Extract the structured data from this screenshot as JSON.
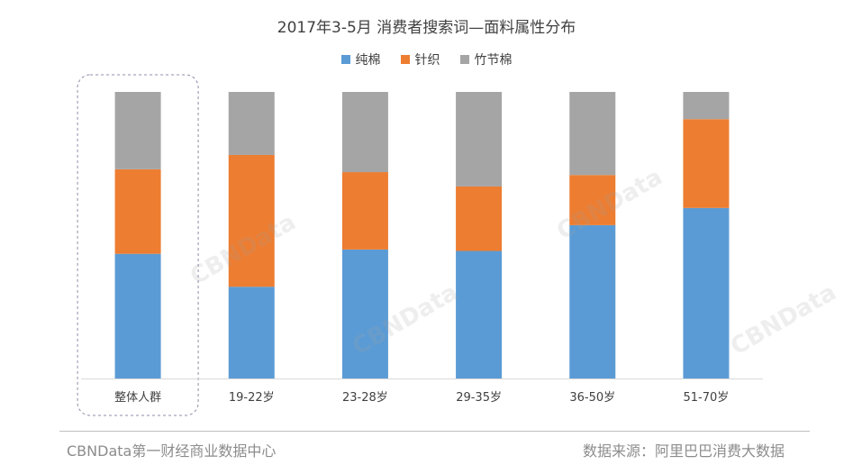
{
  "title": "2017年3-5月 消费者搜索词—面料属性分布",
  "legend": [
    {
      "label": "纯棉",
      "color": "#5b9bd5"
    },
    {
      "label": "针织",
      "color": "#ed7d31"
    },
    {
      "label": "竹节棉",
      "color": "#a5a5a5"
    }
  ],
  "footer": {
    "left": "CBNData第一财经商业数据中心",
    "right": "数据来源：阿里巴巴消费大数据"
  },
  "watermark": "CBNData",
  "chart_data": {
    "type": "bar",
    "stacked": true,
    "percent": true,
    "categories": [
      "整体人群",
      "19-22岁",
      "23-28岁",
      "29-35岁",
      "36-50岁",
      "51-70岁"
    ],
    "series": [
      {
        "name": "纯棉",
        "color": "#5b9bd5",
        "values": [
          43.5,
          32,
          45,
          44.5,
          53.5,
          59.5
        ]
      },
      {
        "name": "针织",
        "color": "#ed7d31",
        "values": [
          29.5,
          46,
          27,
          22.5,
          17.5,
          31
        ]
      },
      {
        "name": "竹节棉",
        "color": "#a5a5a5",
        "values": [
          27,
          22,
          28,
          33,
          29,
          9.5
        ]
      }
    ],
    "highlighted_category": "整体人群",
    "ylim": [
      0,
      100
    ],
    "grid": false,
    "legend_position": "top"
  }
}
